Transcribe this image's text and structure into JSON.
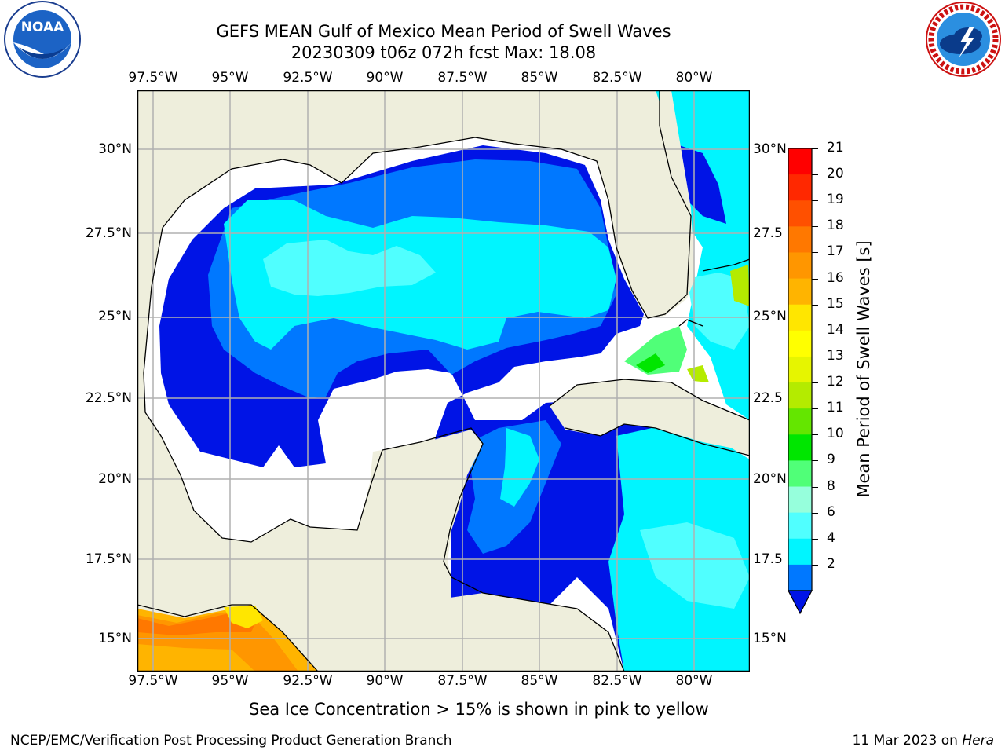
{
  "title_line1": "GEFS MEAN Gulf of Mexico Mean Period of Swell Waves",
  "title_line2": "20230309 t06z 072h fcst   Max: 18.08",
  "lon_labels": [
    "97.5°W",
    "95°W",
    "92.5°W",
    "90°W",
    "87.5°W",
    "85°W",
    "82.5°W",
    "80°W"
  ],
  "lat_labels_left": [
    "30°N",
    "27.5°N",
    "25°N",
    "22.5°N",
    "20°N",
    "17.5°N",
    "15°N"
  ],
  "lat_labels_right": [
    "30°N",
    "27.5",
    "25°N",
    "22.5",
    "20°N",
    "17.5",
    "15°N"
  ],
  "colorbar": {
    "label": "Mean Period of Swell Waves [s]",
    "ticks": [
      "21",
      "20",
      "19",
      "18",
      "17",
      "16",
      "15",
      "14",
      "13",
      "12",
      "11",
      "10",
      "9",
      "8",
      "6",
      "4",
      "2"
    ],
    "colors": [
      "#ff0000",
      "#ff2800",
      "#ff5000",
      "#ff7800",
      "#ff9600",
      "#ffb400",
      "#ffe600",
      "#ffff00",
      "#e6f500",
      "#b4eb00",
      "#64e600",
      "#00e600",
      "#50ff78",
      "#96ffdc",
      "#50ffff",
      "#00f5ff",
      "#0078ff"
    ],
    "under_color": "#0014e6"
  },
  "map_colors": {
    "land": "#eeeedc",
    "no_data": "#ffffff",
    "period_0_2": "#0014e6",
    "period_2_4": "#0078ff",
    "period_4_6": "#00f5ff",
    "period_6_8": "#50ffff",
    "period_9_10": "#50ff78",
    "period_10_11": "#00e600",
    "period_12_13": "#b4eb00",
    "period_15_16": "#ffe600",
    "period_16_17": "#ffb400",
    "period_17_18": "#ff9600",
    "period_18_19": "#ff7800"
  },
  "note": "Sea Ice Concentration > 15% is shown in pink to yellow",
  "footer_left": "NCEP/EMC/Verification Post Processing Product Generation Branch",
  "footer_right_prefix": "11 Mar 2023 on ",
  "footer_right_host": "Hera",
  "logos": {
    "left": "NOAA",
    "right_ring": "NATIONAL WEATHER SERVICE"
  }
}
